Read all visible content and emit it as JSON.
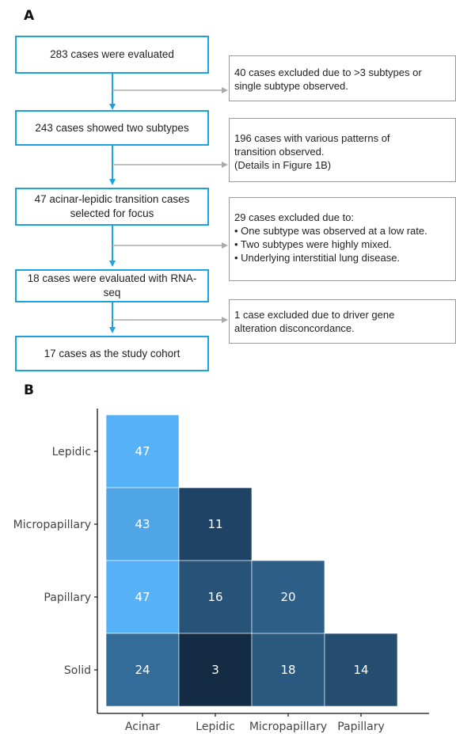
{
  "panelA": {
    "label": "A"
  },
  "panelB": {
    "label": "B"
  },
  "flow": {
    "main_boxes": [
      "283 cases were evaluated",
      "243 cases showed two subtypes",
      "47 acinar-lepidic transition cases selected for focus",
      "18 cases were evaluated with RNA-seq",
      "17 cases as the study cohort"
    ],
    "side_boxes": [
      {
        "lines": [
          "40 cases excluded due to >3 subtypes or",
          "single subtype observed."
        ]
      },
      {
        "lines": [
          "196 cases with various patterns of",
          "transition observed.",
          "(Details in Figure 1B)"
        ]
      },
      {
        "lines": [
          "29 cases excluded due to:",
          "• One subtype was observed at a low rate.",
          "• Two subtypes were highly mixed.",
          "• Underlying interstitial lung disease."
        ]
      },
      {
        "lines": [
          "1 case excluded due to driver gene",
          "alteration disconcordance."
        ]
      }
    ],
    "colors": {
      "main_border": "#1aa3dc",
      "arrow": "#1aa3dc",
      "side_arrow": "#aaaaaa"
    }
  },
  "chart_data": {
    "type": "heatmap",
    "x_categories": [
      "Acinar",
      "Lepidic",
      "Micropapillary",
      "Papillary"
    ],
    "y_categories": [
      "Lepidic",
      "Micropapillary",
      "Papillary",
      "Solid"
    ],
    "cells": [
      {
        "x": "Acinar",
        "y": "Lepidic",
        "value": 47
      },
      {
        "x": "Acinar",
        "y": "Micropapillary",
        "value": 43
      },
      {
        "x": "Lepidic",
        "y": "Micropapillary",
        "value": 11
      },
      {
        "x": "Acinar",
        "y": "Papillary",
        "value": 47
      },
      {
        "x": "Lepidic",
        "y": "Papillary",
        "value": 16
      },
      {
        "x": "Micropapillary",
        "y": "Papillary",
        "value": 20
      },
      {
        "x": "Acinar",
        "y": "Solid",
        "value": 24
      },
      {
        "x": "Lepidic",
        "y": "Solid",
        "value": 3
      },
      {
        "x": "Micropapillary",
        "y": "Solid",
        "value": 18
      },
      {
        "x": "Papillary",
        "y": "Solid",
        "value": 14
      }
    ],
    "color_scale": {
      "low": "#132b43",
      "high": "#56b1f7",
      "min": 3,
      "max": 47
    },
    "legend": false,
    "grid": false
  }
}
